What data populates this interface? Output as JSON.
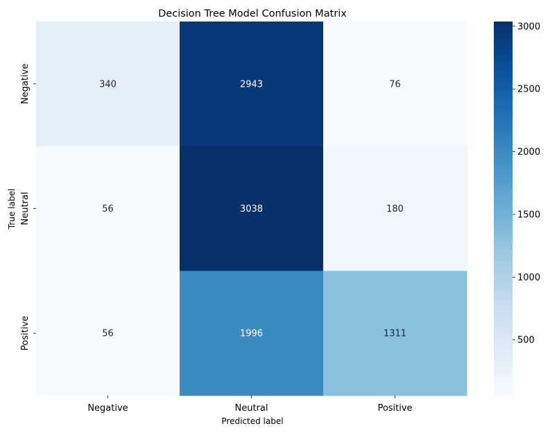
{
  "chart_data": {
    "type": "heatmap",
    "title": "Decision Tree Model Confusion Matrix",
    "xlabel": "Predicted label",
    "ylabel": "True label",
    "x_categories": [
      "Negative",
      "Neutral",
      "Positive"
    ],
    "y_categories": [
      "Negative",
      "Neutral",
      "Positive"
    ],
    "values": [
      [
        340,
        2943,
        76
      ],
      [
        56,
        3038,
        180
      ],
      [
        56,
        1996,
        1311
      ]
    ],
    "colormap": "Blues",
    "color_range": [
      56,
      3038
    ],
    "colorbar_ticks": [
      500,
      1000,
      1500,
      2000,
      2500,
      3000
    ],
    "annotations": true,
    "grid": false
  }
}
